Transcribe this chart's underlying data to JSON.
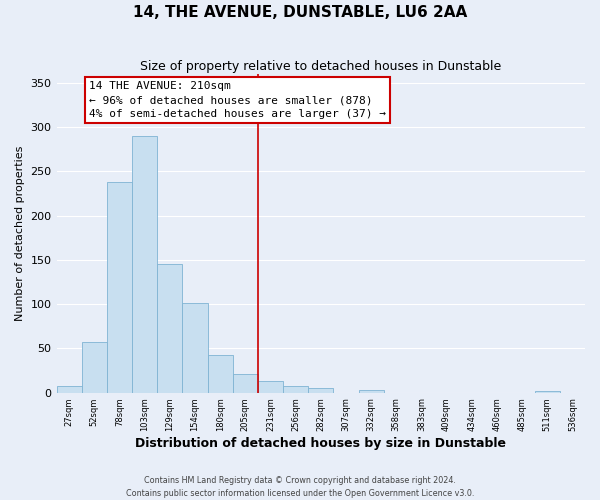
{
  "title": "14, THE AVENUE, DUNSTABLE, LU6 2AA",
  "subtitle": "Size of property relative to detached houses in Dunstable",
  "xlabel": "Distribution of detached houses by size in Dunstable",
  "ylabel": "Number of detached properties",
  "bar_values": [
    8,
    57,
    238,
    290,
    145,
    101,
    42,
    21,
    13,
    7,
    5,
    0,
    3,
    0,
    0,
    0,
    0,
    0,
    0,
    2,
    0
  ],
  "bar_labels": [
    "27sqm",
    "52sqm",
    "78sqm",
    "103sqm",
    "129sqm",
    "154sqm",
    "180sqm",
    "205sqm",
    "231sqm",
    "256sqm",
    "282sqm",
    "307sqm",
    "332sqm",
    "358sqm",
    "383sqm",
    "409sqm",
    "434sqm",
    "460sqm",
    "485sqm",
    "511sqm",
    "536sqm"
  ],
  "bar_color": "#c8dff0",
  "bar_edge_color": "#7fb3d3",
  "vline_x": 7.5,
  "vline_color": "#cc0000",
  "ylim": [
    0,
    360
  ],
  "yticks": [
    0,
    50,
    100,
    150,
    200,
    250,
    300,
    350
  ],
  "annotation_title": "14 THE AVENUE: 210sqm",
  "annotation_line1": "← 96% of detached houses are smaller (878)",
  "annotation_line2": "4% of semi-detached houses are larger (37) →",
  "annotation_box_color": "#ffffff",
  "annotation_box_edge": "#cc0000",
  "footer1": "Contains HM Land Registry data © Crown copyright and database right 2024.",
  "footer2": "Contains public sector information licensed under the Open Government Licence v3.0.",
  "background_color": "#e8eef8",
  "grid_color": "#ffffff"
}
